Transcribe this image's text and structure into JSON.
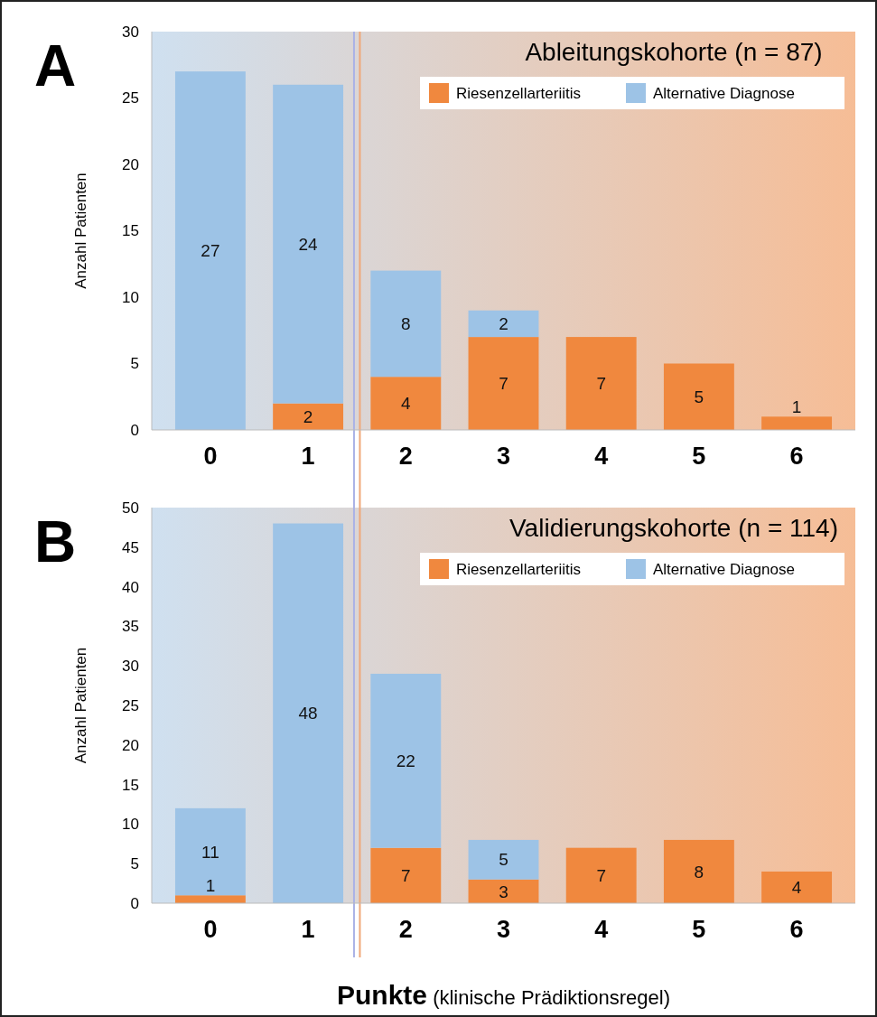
{
  "chart_data": [
    {
      "type": "bar",
      "title": "Ableitungskohorte (n = 87)",
      "ylabel": "Anzahl Patienten",
      "annotations": [
        "A"
      ],
      "x": [
        0,
        1,
        2,
        3,
        4,
        5,
        6
      ],
      "xlim": [
        -0.6,
        6.6
      ],
      "xticks": [
        0,
        1,
        2,
        3,
        4,
        5,
        6
      ],
      "stacked": true,
      "ylim": [
        0,
        30
      ],
      "yticks": [
        0,
        5,
        10,
        15,
        20,
        25,
        30
      ],
      "legend": "top right",
      "ref_lines": [
        {
          "axis": "x",
          "value": 1.47,
          "color": "#aab2e6"
        },
        {
          "axis": "x",
          "value": 1.53,
          "color": "#f0a878"
        }
      ],
      "series": [
        {
          "name": "Riesenzellarteriitis",
          "color": "#f0883e",
          "values": [
            0,
            2,
            4,
            7,
            7,
            5,
            1
          ],
          "value_labels": [
            null,
            "2",
            "4",
            "7",
            "7",
            "5",
            "1"
          ]
        },
        {
          "name": "Alternative Diagnose",
          "color": "#9dc3e6",
          "values": [
            27,
            24,
            8,
            2,
            0,
            0,
            0
          ],
          "value_labels": [
            "27",
            "24",
            "8",
            "2",
            null,
            null,
            null
          ]
        }
      ]
    },
    {
      "type": "bar",
      "title": "Validierungskohorte (n = 114)",
      "ylabel": "Anzahl Patienten",
      "xlabel": "Punkte (klinische Prädiktionsregel)",
      "annotations": [
        "B"
      ],
      "x": [
        0,
        1,
        2,
        3,
        4,
        5,
        6
      ],
      "xlim": [
        -0.6,
        6.6
      ],
      "xticks": [
        0,
        1,
        2,
        3,
        4,
        5,
        6
      ],
      "stacked": true,
      "ylim": [
        0,
        50
      ],
      "yticks": [
        0,
        5,
        10,
        15,
        20,
        25,
        30,
        35,
        40,
        45,
        50
      ],
      "legend": "top right",
      "ref_lines": [
        {
          "axis": "x",
          "value": 1.47,
          "color": "#aab2e6"
        },
        {
          "axis": "x",
          "value": 1.53,
          "color": "#f0a878"
        }
      ],
      "series": [
        {
          "name": "Riesenzellarteriitis",
          "color": "#f0883e",
          "values": [
            1,
            0,
            7,
            3,
            7,
            8,
            4
          ],
          "value_labels": [
            "1",
            null,
            "7",
            "3",
            "7",
            "8",
            "4"
          ]
        },
        {
          "name": "Alternative Diagnose",
          "color": "#9dc3e6",
          "values": [
            11,
            48,
            22,
            5,
            0,
            0,
            0
          ],
          "value_labels": [
            "11",
            "48",
            "22",
            "5",
            null,
            null,
            null
          ]
        }
      ]
    }
  ]
}
